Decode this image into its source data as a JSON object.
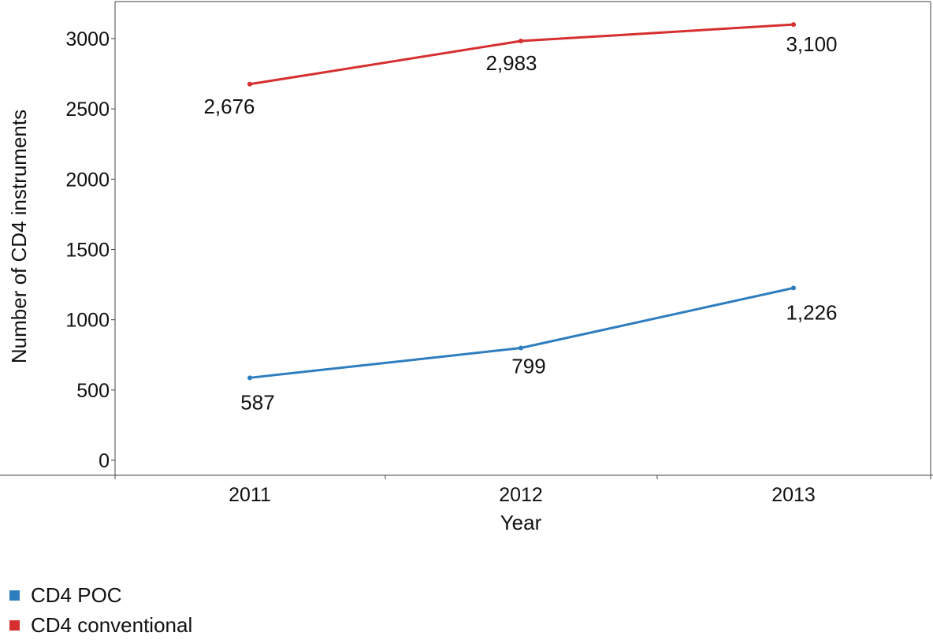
{
  "chart_data": {
    "type": "line",
    "categories": [
      "2011",
      "2012",
      "2013"
    ],
    "series": [
      {
        "name": "CD4 POC",
        "values": [
          587,
          799,
          1226
        ],
        "labels": [
          "587",
          "799",
          "1,226"
        ],
        "color": "#2E7EBF"
      },
      {
        "name": "CD4 conventional",
        "values": [
          2676,
          2983,
          3100
        ],
        "labels": [
          "2,676",
          "2,983",
          "3,100"
        ],
        "color": "#D62F2F"
      }
    ],
    "xlabel": "Year",
    "ylabel": "Number of CD4 instruments",
    "ylim": [
      0,
      3000
    ],
    "yticks": [
      "0",
      "500",
      "1000",
      "1500",
      "2000",
      "2500",
      "3000"
    ],
    "grid": false,
    "legend_position": "bottom-left"
  }
}
